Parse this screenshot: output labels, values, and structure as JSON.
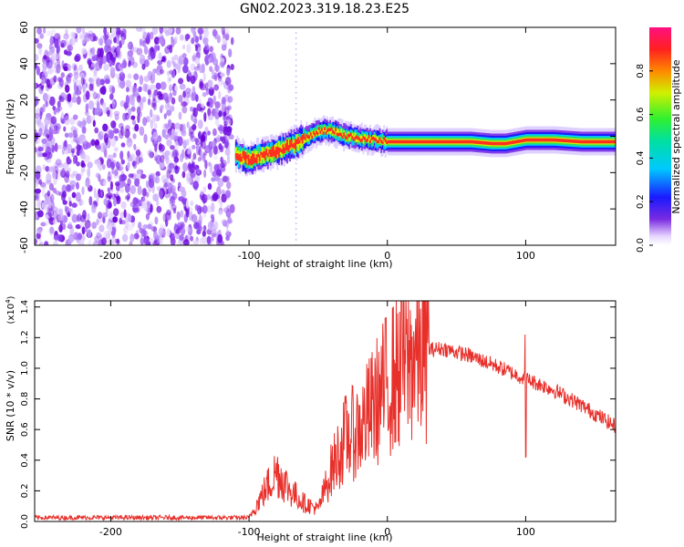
{
  "title": "GN02.2023.319.18.23.E25",
  "colors": {
    "snr_line": "#e8302b",
    "axes": "#000000"
  },
  "chart_data": [
    {
      "type": "heatmap",
      "xlabel": "Height of straight line (km)",
      "ylabel": "Frequency (Hz)",
      "xlim": [
        -255,
        165
      ],
      "ylim": [
        -60,
        60
      ],
      "xticks": [
        -200,
        -100,
        0,
        100
      ],
      "yticks": [
        -60,
        -40,
        -20,
        0,
        20,
        40,
        60
      ],
      "colorbar": {
        "label": "Normalized spectral amplitude",
        "ticks": [
          "0.0",
          "0.2",
          "0.4",
          "0.6",
          "0.8"
        ],
        "colormap": "rainbow"
      },
      "ridge": {
        "x": [
          -110,
          -100,
          -90,
          -80,
          -70,
          -60,
          -50,
          -40,
          -30,
          -20,
          -10,
          0,
          20,
          40,
          60,
          75,
          85,
          100,
          120,
          140,
          165
        ],
        "y": [
          -10,
          -13,
          -10,
          -8,
          -5,
          -1,
          3,
          3,
          0,
          -1,
          -2,
          -3,
          -3,
          -3,
          -3,
          -4,
          -4,
          -2,
          -2,
          -3,
          -3
        ]
      }
    },
    {
      "type": "line",
      "xlabel": "Height of straight line (km)",
      "ylabel": "SNR (10 * v/v)",
      "yscale_label": "(x10",
      "yscale_exp": "4",
      "yscale_close": ")",
      "xlim": [
        -255,
        165
      ],
      "ylim": [
        0,
        14400
      ],
      "xticks": [
        -200,
        -100,
        0,
        100
      ],
      "yticks": [
        "0.0",
        "0.2",
        "0.4",
        "0.6",
        "0.8",
        "1.0",
        "1.2",
        "1.4"
      ],
      "envelope": {
        "x": [
          -255,
          -100,
          -90,
          -80,
          -70,
          -60,
          -50,
          -40,
          -30,
          -20,
          -10,
          0,
          10,
          20,
          30,
          40,
          60,
          80,
          100,
          120,
          140,
          165
        ],
        "y": [
          250,
          250,
          1800,
          3300,
          2000,
          1200,
          800,
          3500,
          5500,
          6000,
          7500,
          9000,
          10000,
          10800,
          11200,
          11300,
          10800,
          10100,
          9300,
          8600,
          7600,
          6200
        ]
      }
    }
  ]
}
